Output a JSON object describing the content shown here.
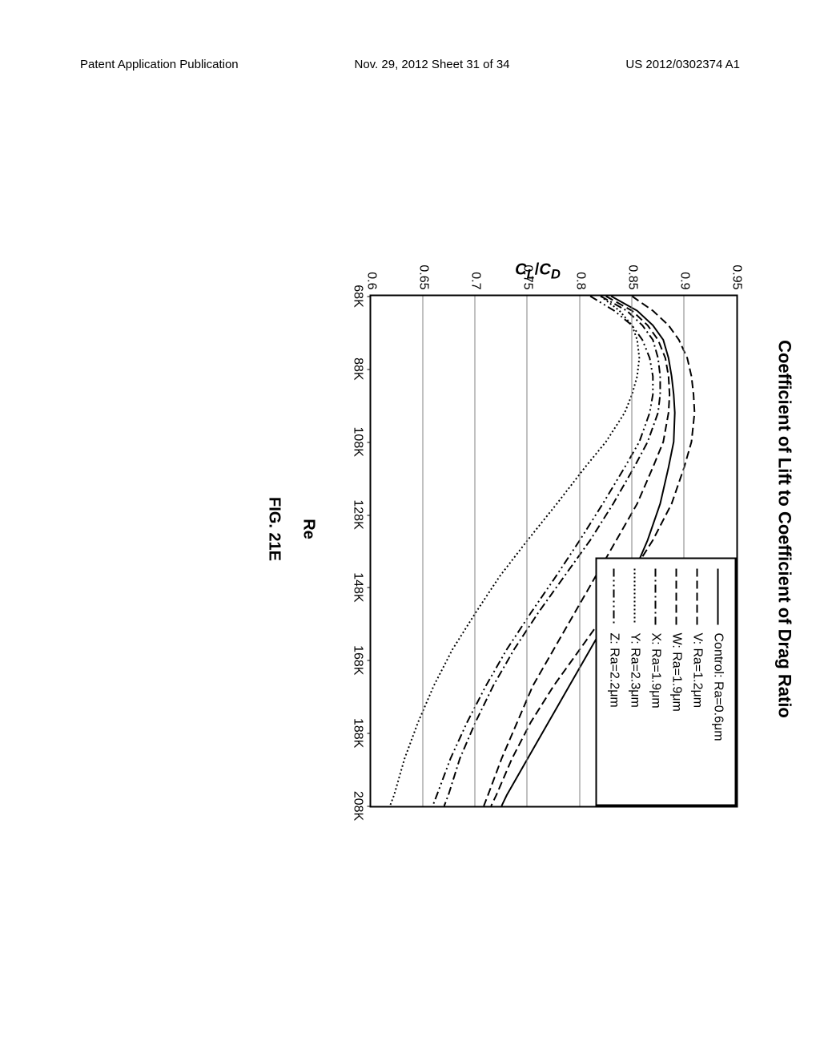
{
  "header": {
    "left": "Patent Application Publication",
    "center": "Nov. 29, 2012  Sheet 31 of 34",
    "right": "US 2012/0302374 A1"
  },
  "chart": {
    "title": "Coefficient of Lift to Coefficient of Drag Ratio",
    "ylabel": "C_L/C_D",
    "xlabel": "Re",
    "figure_label": "FIG. 21E",
    "xlim": [
      68,
      208
    ],
    "ylim": [
      0.6,
      0.95
    ],
    "xticks": [
      68,
      88,
      108,
      128,
      148,
      168,
      188,
      208
    ],
    "xtick_labels": [
      "68K",
      "88K",
      "108K",
      "128K",
      "148K",
      "168K",
      "188K",
      "208K"
    ],
    "yticks": [
      0.6,
      0.65,
      0.7,
      0.75,
      0.8,
      0.85,
      0.9,
      0.95
    ],
    "ytick_labels": [
      "0.6",
      "0.65",
      "0.7",
      "0.75",
      "0.8",
      "0.85",
      "0.9",
      "0.95"
    ],
    "grid_color": "#808080",
    "background_color": "#ffffff",
    "line_color": "#000000",
    "line_width": 2,
    "series": [
      {
        "name": "Control: Ra=0.6μm",
        "dash": "solid",
        "points": [
          [
            68,
            0.83
          ],
          [
            72,
            0.855
          ],
          [
            76,
            0.87
          ],
          [
            80,
            0.88
          ],
          [
            85,
            0.885
          ],
          [
            90,
            0.888
          ],
          [
            95,
            0.89
          ],
          [
            100,
            0.891
          ],
          [
            108,
            0.89
          ],
          [
            115,
            0.885
          ],
          [
            125,
            0.877
          ],
          [
            135,
            0.865
          ],
          [
            145,
            0.85
          ],
          [
            155,
            0.83
          ],
          [
            165,
            0.81
          ],
          [
            175,
            0.79
          ],
          [
            185,
            0.77
          ],
          [
            195,
            0.75
          ],
          [
            205,
            0.73
          ],
          [
            208,
            0.725
          ]
        ]
      },
      {
        "name": "V: Ra=1.2μm",
        "dash": "dash1",
        "points": [
          [
            68,
            0.85
          ],
          [
            72,
            0.87
          ],
          [
            76,
            0.885
          ],
          [
            80,
            0.895
          ],
          [
            85,
            0.903
          ],
          [
            90,
            0.907
          ],
          [
            95,
            0.909
          ],
          [
            100,
            0.91
          ],
          [
            108,
            0.907
          ],
          [
            115,
            0.9
          ],
          [
            125,
            0.888
          ],
          [
            135,
            0.87
          ],
          [
            145,
            0.848
          ],
          [
            155,
            0.825
          ],
          [
            165,
            0.8
          ],
          [
            175,
            0.775
          ],
          [
            185,
            0.753
          ],
          [
            195,
            0.735
          ],
          [
            205,
            0.72
          ],
          [
            208,
            0.715
          ]
        ]
      },
      {
        "name": "W: Ra=1.9μm",
        "dash": "dash2",
        "points": [
          [
            68,
            0.825
          ],
          [
            72,
            0.85
          ],
          [
            76,
            0.865
          ],
          [
            80,
            0.875
          ],
          [
            85,
            0.882
          ],
          [
            90,
            0.885
          ],
          [
            95,
            0.886
          ],
          [
            100,
            0.885
          ],
          [
            108,
            0.88
          ],
          [
            115,
            0.87
          ],
          [
            125,
            0.855
          ],
          [
            135,
            0.835
          ],
          [
            145,
            0.815
          ],
          [
            155,
            0.795
          ],
          [
            165,
            0.775
          ],
          [
            175,
            0.755
          ],
          [
            185,
            0.74
          ],
          [
            195,
            0.725
          ],
          [
            205,
            0.712
          ],
          [
            208,
            0.708
          ]
        ]
      },
      {
        "name": "X: Ra=1.9μm",
        "dash": "dashdot",
        "points": [
          [
            68,
            0.82
          ],
          [
            72,
            0.845
          ],
          [
            76,
            0.86
          ],
          [
            80,
            0.87
          ],
          [
            85,
            0.875
          ],
          [
            90,
            0.877
          ],
          [
            95,
            0.877
          ],
          [
            100,
            0.875
          ],
          [
            108,
            0.865
          ],
          [
            115,
            0.852
          ],
          [
            125,
            0.832
          ],
          [
            135,
            0.81
          ],
          [
            145,
            0.785
          ],
          [
            155,
            0.76
          ],
          [
            165,
            0.737
          ],
          [
            175,
            0.717
          ],
          [
            185,
            0.7
          ],
          [
            195,
            0.685
          ],
          [
            205,
            0.674
          ],
          [
            208,
            0.67
          ]
        ]
      },
      {
        "name": "Y: Ra=2.3μm",
        "dash": "dot",
        "points": [
          [
            68,
            0.82
          ],
          [
            72,
            0.838
          ],
          [
            76,
            0.85
          ],
          [
            80,
            0.855
          ],
          [
            85,
            0.857
          ],
          [
            90,
            0.855
          ],
          [
            95,
            0.85
          ],
          [
            100,
            0.843
          ],
          [
            108,
            0.825
          ],
          [
            115,
            0.805
          ],
          [
            125,
            0.778
          ],
          [
            135,
            0.75
          ],
          [
            145,
            0.723
          ],
          [
            155,
            0.7
          ],
          [
            165,
            0.678
          ],
          [
            175,
            0.66
          ],
          [
            185,
            0.645
          ],
          [
            195,
            0.632
          ],
          [
            205,
            0.622
          ],
          [
            208,
            0.618
          ]
        ]
      },
      {
        "name": "Z: Ra=2.2μm",
        "dash": "dashdotdot",
        "points": [
          [
            68,
            0.81
          ],
          [
            72,
            0.833
          ],
          [
            76,
            0.85
          ],
          [
            80,
            0.86
          ],
          [
            85,
            0.867
          ],
          [
            90,
            0.87
          ],
          [
            95,
            0.87
          ],
          [
            100,
            0.867
          ],
          [
            108,
            0.857
          ],
          [
            115,
            0.843
          ],
          [
            125,
            0.822
          ],
          [
            135,
            0.8
          ],
          [
            145,
            0.777
          ],
          [
            155,
            0.753
          ],
          [
            165,
            0.73
          ],
          [
            175,
            0.71
          ],
          [
            185,
            0.692
          ],
          [
            195,
            0.676
          ],
          [
            205,
            0.663
          ],
          [
            208,
            0.659
          ]
        ]
      }
    ],
    "dash_patterns": {
      "solid": "",
      "dash1": "10,5",
      "dash2": "10,5",
      "dashdot": "10,4,2,4",
      "dot": "2,3",
      "dashdotdot": "10,4,2,4,2,4"
    }
  }
}
